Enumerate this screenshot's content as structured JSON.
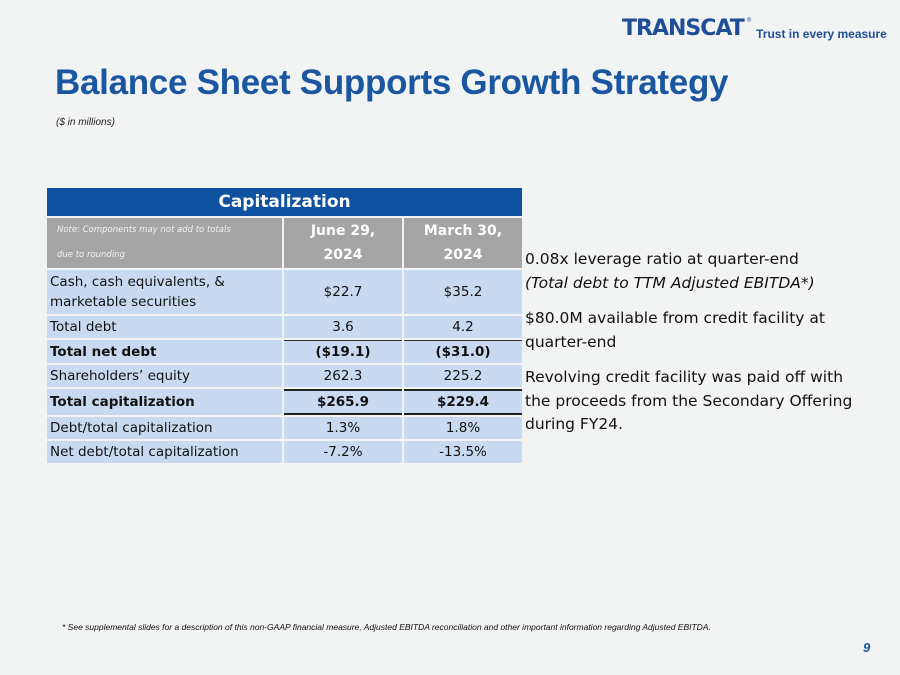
{
  "logo": {
    "brand": "TRANSCAT",
    "tagline": "Trust in every measure"
  },
  "title": "Balance Sheet Supports Growth Strategy",
  "subtitle": "($ in millions)",
  "table": {
    "title": "Capitalization",
    "note_line1": "Note: Components may not add to totals",
    "note_line2": "due to rounding",
    "columns": [
      {
        "line1": "June 29,",
        "line2": "2024"
      },
      {
        "line1": "March 30,",
        "line2": "2024"
      }
    ],
    "rows": [
      {
        "label": "Cash, cash equivalents, & marketable securities",
        "values": [
          "$22.7",
          "$35.2"
        ]
      },
      {
        "label": "Total debt",
        "values": [
          "3.6",
          "4.2"
        ]
      },
      {
        "label": "Total net debt",
        "values": [
          "($19.1)",
          "($31.0)"
        ]
      },
      {
        "label": "Shareholders’ equity",
        "values": [
          "262.3",
          "225.2"
        ]
      },
      {
        "label": "Total capitalization",
        "values": [
          "$265.9",
          "$229.4"
        ]
      },
      {
        "label": "Debt/total capitalization",
        "values": [
          "1.3%",
          "1.8%"
        ]
      },
      {
        "label": "Net debt/total capitalization",
        "values": [
          "-7.2%",
          "-13.5%"
        ]
      }
    ]
  },
  "bullets": [
    {
      "text": "0.08x leverage ratio at quarter-end",
      "italic": "(Total debt to TTM Adjusted EBITDA*)"
    },
    {
      "text": "$80.0M available from credit facility at quarter-end"
    },
    {
      "text": "Revolving credit facility was paid off with the proceeds from the Secondary Offering during FY24."
    }
  ],
  "footnote": "* See supplemental slides for a description of this non-GAAP financial measure, Adjusted EBITDA reconciliation and other important information regarding Adjusted EBITDA.",
  "page_number": "9"
}
